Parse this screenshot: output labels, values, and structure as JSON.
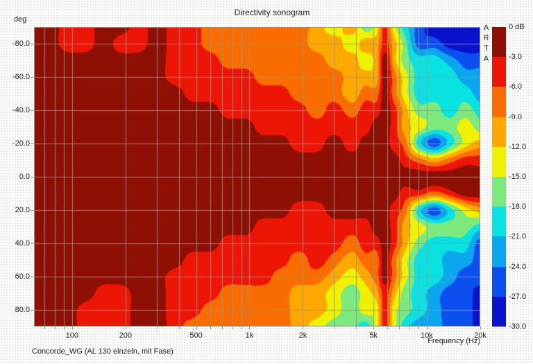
{
  "chart": {
    "title": "Directivity sonogram",
    "y_axis_unit": "deg",
    "x_axis_label": "Frequency (Hz)",
    "footer": "Concorde_WG (AL 130 einzeln, mit Fase)",
    "watermark_letters": [
      "A",
      "R",
      "T",
      "A"
    ]
  },
  "colors": {
    "grid_line": "#8c9794",
    "text": "#1e1e1e",
    "background": "#ffffff"
  },
  "chart_data": {
    "type": "heatmap",
    "title": "Directivity sonogram",
    "xlabel": "Frequency (Hz)",
    "ylabel": "deg",
    "x_axis": {
      "scale": "log",
      "min": 61,
      "max": 20000,
      "ticks": [
        100,
        200,
        500,
        1000,
        2000,
        5000,
        10000,
        20000
      ],
      "tick_labels": [
        "100",
        "200",
        "500",
        "1k",
        "2k",
        "5k",
        "10k",
        "20k"
      ],
      "gridlines": [
        70,
        80,
        90,
        100,
        200,
        300,
        400,
        500,
        600,
        700,
        800,
        900,
        1000,
        2000,
        3000,
        4000,
        5000,
        6000,
        7000,
        8000,
        9000,
        10000,
        20000
      ]
    },
    "y_axis": {
      "min": -90,
      "max": 90,
      "ticks": [
        -80,
        -60,
        -40,
        -20,
        0,
        20,
        40,
        60,
        80
      ],
      "tick_labels": [
        "-80.0",
        "-60.0",
        "-40.0",
        "-20.0",
        "0.0",
        "20.0",
        "40.0",
        "60.0",
        "80.0"
      ],
      "gridline_step_deg": 20
    },
    "color_scale": {
      "unit": "dB",
      "max": 0,
      "min": -30,
      "band_size_db": 3,
      "labels": [
        "0 dB",
        "-3.0",
        "-6.0",
        "-9.0",
        "-12.0",
        "-15.0",
        "-18.0",
        "-21.0",
        "-24.0",
        "-27.0",
        "-30.0"
      ],
      "colors": [
        "#8e1004",
        "#ed1505",
        "#f96d00",
        "#fda902",
        "#eef103",
        "#7ce87e",
        "#0ae2e2",
        "#0ba6ee",
        "#0b50ef",
        "#0b12cc"
      ]
    },
    "grid": {
      "angles_deg": [
        -90,
        -80,
        -70,
        -60,
        -50,
        -40,
        -30,
        -20,
        -10,
        0,
        10,
        20,
        30,
        40,
        50,
        60,
        70,
        80,
        90
      ],
      "frequencies_hz": [
        60,
        75,
        95,
        120,
        150,
        190,
        240,
        300,
        380,
        480,
        600,
        760,
        950,
        1200,
        1500,
        1900,
        2400,
        3000,
        3800,
        4500,
        5200,
        5800,
        6500,
        7500,
        9000,
        11000,
        13500,
        16500,
        20000
      ],
      "values_db": [
        [
          -1.5,
          -1.5,
          -4.5,
          -4.5,
          -1.5,
          -1.5,
          -4.5,
          -1.5,
          -4.5,
          -4.5,
          -7.5,
          -7.5,
          -7.5,
          -7.5,
          -7.5,
          -7.5,
          -10.5,
          -13.5,
          -10.5,
          -16.5,
          -13.5,
          -4.5,
          -13.5,
          -19.5,
          -25.5,
          -28.5,
          -28.5,
          -28.5,
          -28.5
        ],
        [
          -1.5,
          -1.5,
          -4.5,
          -4.5,
          -1.5,
          -4.5,
          -4.5,
          -1.5,
          -4.5,
          -4.5,
          -7.5,
          -7.5,
          -7.5,
          -7.5,
          -7.5,
          -7.5,
          -10.5,
          -10.5,
          -13.5,
          -10.5,
          -10.5,
          -4.5,
          -10.5,
          -16.5,
          -25.5,
          -25.5,
          -28.5,
          -28.5,
          -28.5
        ],
        [
          -1.5,
          -1.5,
          -1.5,
          -1.5,
          -1.5,
          -1.5,
          -1.5,
          -1.5,
          -4.5,
          -4.5,
          -4.5,
          -7.5,
          -7.5,
          -7.5,
          -7.5,
          -7.5,
          -7.5,
          -10.5,
          -10.5,
          -13.5,
          -10.5,
          -1.5,
          -10.5,
          -16.5,
          -19.5,
          -19.5,
          -22.5,
          -25.5,
          -25.5
        ],
        [
          -1.5,
          -1.5,
          -1.5,
          -1.5,
          -1.5,
          -1.5,
          -1.5,
          -1.5,
          -4.5,
          -4.5,
          -4.5,
          -4.5,
          -4.5,
          -7.5,
          -7.5,
          -7.5,
          -7.5,
          -7.5,
          -10.5,
          -10.5,
          -10.5,
          -1.5,
          -7.5,
          -13.5,
          -19.5,
          -19.5,
          -19.5,
          -22.5,
          -22.5
        ],
        [
          -1.5,
          -1.5,
          -1.5,
          -1.5,
          -1.5,
          -1.5,
          -1.5,
          -1.5,
          -1.5,
          -4.5,
          -4.5,
          -4.5,
          -4.5,
          -4.5,
          -4.5,
          -7.5,
          -7.5,
          -7.5,
          -10.5,
          -7.5,
          -7.5,
          -1.5,
          -7.5,
          -13.5,
          -19.5,
          -19.5,
          -19.5,
          -19.5,
          -22.5
        ],
        [
          -1.5,
          -1.5,
          -1.5,
          -1.5,
          -1.5,
          -1.5,
          -1.5,
          -1.5,
          -1.5,
          -1.5,
          -1.5,
          -4.5,
          -4.5,
          -4.5,
          -4.5,
          -4.5,
          -7.5,
          -4.5,
          -7.5,
          -4.5,
          -4.5,
          -1.5,
          -4.5,
          -10.5,
          -16.5,
          -16.5,
          -19.5,
          -16.5,
          -19.5
        ],
        [
          -1.5,
          -1.5,
          -1.5,
          -1.5,
          -1.5,
          -1.5,
          -1.5,
          -1.5,
          -1.5,
          -1.5,
          -1.5,
          -1.5,
          -1.5,
          -4.5,
          -4.5,
          -4.5,
          -4.5,
          -4.5,
          -4.5,
          -4.5,
          -1.5,
          -1.5,
          -4.5,
          -10.5,
          -13.5,
          -16.5,
          -16.5,
          -13.5,
          -16.5
        ],
        [
          -1.5,
          -1.5,
          -1.5,
          -1.5,
          -1.5,
          -1.5,
          -1.5,
          -1.5,
          -1.5,
          -1.5,
          -1.5,
          -1.5,
          -1.5,
          -1.5,
          -1.5,
          -4.5,
          -4.5,
          -1.5,
          -4.5,
          -1.5,
          -1.5,
          -1.5,
          -4.5,
          -7.5,
          -19.5,
          -25.5,
          -19.5,
          -13.5,
          -10.5
        ],
        [
          -1.5,
          -1.5,
          -1.5,
          -1.5,
          -1.5,
          -1.5,
          -1.5,
          -1.5,
          -1.5,
          -1.5,
          -1.5,
          -1.5,
          -1.5,
          -1.5,
          -1.5,
          -1.5,
          -1.5,
          -1.5,
          -1.5,
          -1.5,
          -1.5,
          -1.5,
          -1.5,
          -4.5,
          -7.5,
          -10.5,
          -7.5,
          -4.5,
          -4.5
        ],
        [
          -1.5,
          -1.5,
          -1.5,
          -1.5,
          -1.5,
          -1.5,
          -1.5,
          -1.5,
          -1.5,
          -1.5,
          -1.5,
          -1.5,
          -1.5,
          -1.5,
          -1.5,
          -1.5,
          -1.5,
          -1.5,
          -1.5,
          -1.5,
          -1.5,
          -1.5,
          -1.5,
          -1.5,
          -1.5,
          -1.5,
          -1.5,
          -1.5,
          -1.5
        ],
        [
          -1.5,
          -1.5,
          -1.5,
          -1.5,
          -1.5,
          -1.5,
          -1.5,
          -1.5,
          -1.5,
          -1.5,
          -1.5,
          -1.5,
          -1.5,
          -1.5,
          -1.5,
          -1.5,
          -1.5,
          -1.5,
          -1.5,
          -1.5,
          -1.5,
          -1.5,
          -1.5,
          -4.5,
          -4.5,
          -7.5,
          -4.5,
          -1.5,
          -1.5
        ],
        [
          -1.5,
          -1.5,
          -1.5,
          -1.5,
          -1.5,
          -1.5,
          -1.5,
          -1.5,
          -1.5,
          -1.5,
          -1.5,
          -1.5,
          -1.5,
          -1.5,
          -1.5,
          -4.5,
          -4.5,
          -1.5,
          -1.5,
          -1.5,
          -1.5,
          -1.5,
          -4.5,
          -7.5,
          -19.5,
          -25.5,
          -19.5,
          -13.5,
          -10.5
        ],
        [
          -1.5,
          -1.5,
          -1.5,
          -1.5,
          -1.5,
          -1.5,
          -1.5,
          -1.5,
          -1.5,
          -1.5,
          -1.5,
          -1.5,
          -1.5,
          -4.5,
          -4.5,
          -4.5,
          -4.5,
          -4.5,
          -4.5,
          -4.5,
          -1.5,
          -1.5,
          -4.5,
          -10.5,
          -13.5,
          -16.5,
          -16.5,
          -16.5,
          -19.5
        ],
        [
          -1.5,
          -1.5,
          -1.5,
          -1.5,
          -1.5,
          -1.5,
          -1.5,
          -1.5,
          -1.5,
          -1.5,
          -1.5,
          -4.5,
          -4.5,
          -4.5,
          -4.5,
          -4.5,
          -4.5,
          -4.5,
          -7.5,
          -4.5,
          -4.5,
          -1.5,
          -4.5,
          -10.5,
          -16.5,
          -19.5,
          -19.5,
          -19.5,
          -25.5
        ],
        [
          -1.5,
          -1.5,
          -1.5,
          -1.5,
          -1.5,
          -1.5,
          -1.5,
          -1.5,
          -1.5,
          -4.5,
          -4.5,
          -4.5,
          -4.5,
          -4.5,
          -4.5,
          -7.5,
          -4.5,
          -7.5,
          -10.5,
          -7.5,
          -7.5,
          -1.5,
          -7.5,
          -13.5,
          -19.5,
          -19.5,
          -22.5,
          -22.5,
          -25.5
        ],
        [
          -1.5,
          -1.5,
          -1.5,
          -1.5,
          -1.5,
          -1.5,
          -1.5,
          -1.5,
          -4.5,
          -4.5,
          -4.5,
          -4.5,
          -4.5,
          -4.5,
          -7.5,
          -7.5,
          -7.5,
          -10.5,
          -13.5,
          -10.5,
          -7.5,
          -1.5,
          -7.5,
          -13.5,
          -19.5,
          -19.5,
          -22.5,
          -25.5,
          -25.5
        ],
        [
          -1.5,
          -1.5,
          -1.5,
          -1.5,
          -4.5,
          -4.5,
          -1.5,
          -1.5,
          -4.5,
          -4.5,
          -4.5,
          -7.5,
          -7.5,
          -7.5,
          -7.5,
          -10.5,
          -10.5,
          -13.5,
          -16.5,
          -13.5,
          -10.5,
          -4.5,
          -10.5,
          -16.5,
          -19.5,
          -22.5,
          -25.5,
          -25.5,
          -28.5
        ],
        [
          -1.5,
          -1.5,
          -1.5,
          -4.5,
          -4.5,
          -4.5,
          -1.5,
          -1.5,
          -4.5,
          -4.5,
          -7.5,
          -7.5,
          -7.5,
          -7.5,
          -7.5,
          -10.5,
          -10.5,
          -13.5,
          -16.5,
          -13.5,
          -13.5,
          -4.5,
          -13.5,
          -16.5,
          -19.5,
          -22.5,
          -25.5,
          -25.5,
          -28.5
        ],
        [
          -1.5,
          -1.5,
          -1.5,
          -4.5,
          -4.5,
          -4.5,
          -1.5,
          -1.5,
          -4.5,
          -7.5,
          -7.5,
          -7.5,
          -7.5,
          -7.5,
          -7.5,
          -10.5,
          -13.5,
          -16.5,
          -16.5,
          -19.5,
          -13.5,
          -4.5,
          -13.5,
          -19.5,
          -22.5,
          -22.5,
          -25.5,
          -25.5,
          -28.5
        ]
      ]
    }
  }
}
